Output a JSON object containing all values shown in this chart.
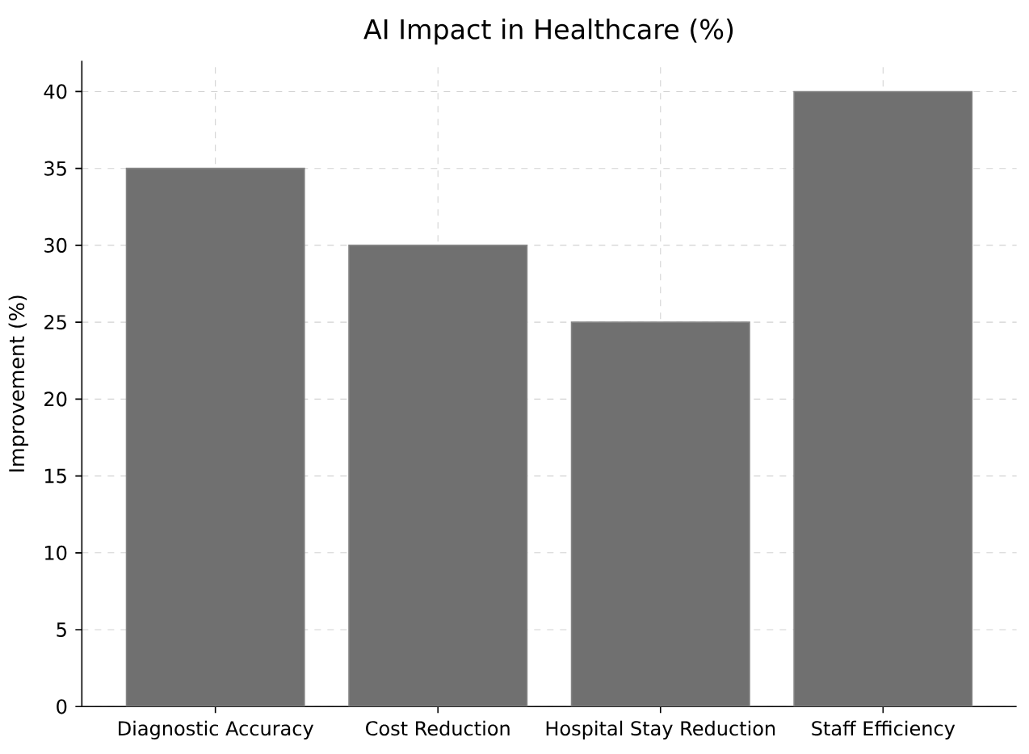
{
  "chart_data": {
    "type": "bar",
    "title": "AI Impact in Healthcare (%)",
    "ylabel": "Improvement (%)",
    "categories": [
      "Diagnostic Accuracy",
      "Cost Reduction",
      "Hospital Stay Reduction",
      "Staff Efficiency"
    ],
    "values": [
      35,
      30,
      25,
      40
    ],
    "color": "#707070",
    "ylim": [
      0,
      42
    ],
    "yticks": [
      0,
      5,
      10,
      15,
      20,
      25,
      30,
      35,
      40
    ],
    "grid": true
  }
}
